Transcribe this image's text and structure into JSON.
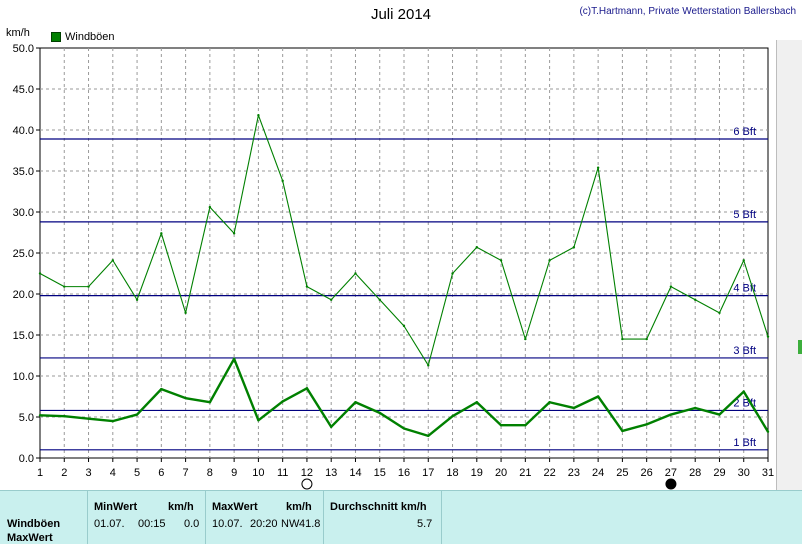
{
  "header": {
    "title": "Juli 2014",
    "copyright": "(c)T.Hartmann, Private Wetterstation Ballersbach",
    "unit": "km/h",
    "legend_label": "Windböen"
  },
  "chart_data": {
    "type": "line",
    "title": "Juli 2014",
    "ylabel": "km/h",
    "ylim": [
      0,
      50
    ],
    "xlim": [
      1,
      31
    ],
    "grid": true,
    "legend": "top-left",
    "x": [
      1,
      2,
      3,
      4,
      5,
      6,
      7,
      8,
      9,
      10,
      11,
      12,
      13,
      14,
      15,
      16,
      17,
      18,
      19,
      20,
      21,
      22,
      23,
      24,
      25,
      26,
      27,
      28,
      29,
      30,
      31
    ],
    "x_ticks": [
      "1",
      "2",
      "3",
      "4",
      "5",
      "6",
      "7",
      "8",
      "9",
      "10",
      "11",
      "12",
      "13",
      "14",
      "15",
      "16",
      "17",
      "18",
      "19",
      "20",
      "21",
      "22",
      "23",
      "24",
      "25",
      "26",
      "27",
      "28",
      "29",
      "30",
      "31"
    ],
    "y_ticks": [
      "0.0",
      "5.0",
      "10.0",
      "15.0",
      "20.0",
      "25.0",
      "30.0",
      "35.0",
      "40.0",
      "45.0",
      "50.0"
    ],
    "series": [
      {
        "name": "Windböen",
        "role": "max",
        "color": "#008000",
        "values": [
          22.5,
          20.9,
          20.9,
          24.1,
          19.3,
          27.4,
          17.7,
          30.6,
          27.4,
          41.8,
          33.8,
          20.9,
          19.3,
          22.5,
          19.3,
          16.1,
          11.3,
          22.5,
          25.7,
          24.1,
          14.5,
          24.1,
          25.7,
          35.4,
          14.5,
          14.5,
          20.9,
          19.3,
          17.7,
          24.1,
          14.8
        ]
      },
      {
        "name": "",
        "role": "average",
        "color": "#008000",
        "values": [
          5.2,
          5.1,
          4.8,
          4.5,
          5.3,
          8.4,
          7.3,
          6.8,
          12.1,
          4.6,
          6.9,
          8.5,
          3.8,
          6.8,
          5.5,
          3.6,
          2.7,
          5.1,
          6.8,
          4.0,
          4.0,
          6.8,
          6.1,
          7.5,
          3.3,
          4.1,
          5.3,
          6.1,
          5.3,
          8.1,
          3.2
        ]
      }
    ],
    "reference_lines": [
      {
        "label": "1 Bft",
        "value": 1.0,
        "color": "#000080"
      },
      {
        "label": "2 Bft",
        "value": 5.8,
        "color": "#000080"
      },
      {
        "label": "3 Bft",
        "value": 12.2,
        "color": "#000080"
      },
      {
        "label": "4 Bft",
        "value": 19.8,
        "color": "#000080"
      },
      {
        "label": "5 Bft",
        "value": 28.8,
        "color": "#000080"
      },
      {
        "label": "6 Bft",
        "value": 38.9,
        "color": "#000080"
      }
    ],
    "moon_markers": [
      {
        "day": 12,
        "phase": "full-moon"
      },
      {
        "day": 27,
        "phase": "new-moon"
      }
    ]
  },
  "stats": {
    "row_label": "Windböen",
    "row_label2": "MaxWert",
    "min": {
      "header": "MinWert",
      "unit": "km/h",
      "date": "01.07.",
      "time": "00:15",
      "value": "0.0"
    },
    "max": {
      "header": "MaxWert",
      "unit": "km/h",
      "date": "10.07.",
      "time": "20:20",
      "direction": "NW",
      "value": "41.8"
    },
    "avg": {
      "header": "Durchschnitt km/h",
      "value": "5.7"
    }
  }
}
